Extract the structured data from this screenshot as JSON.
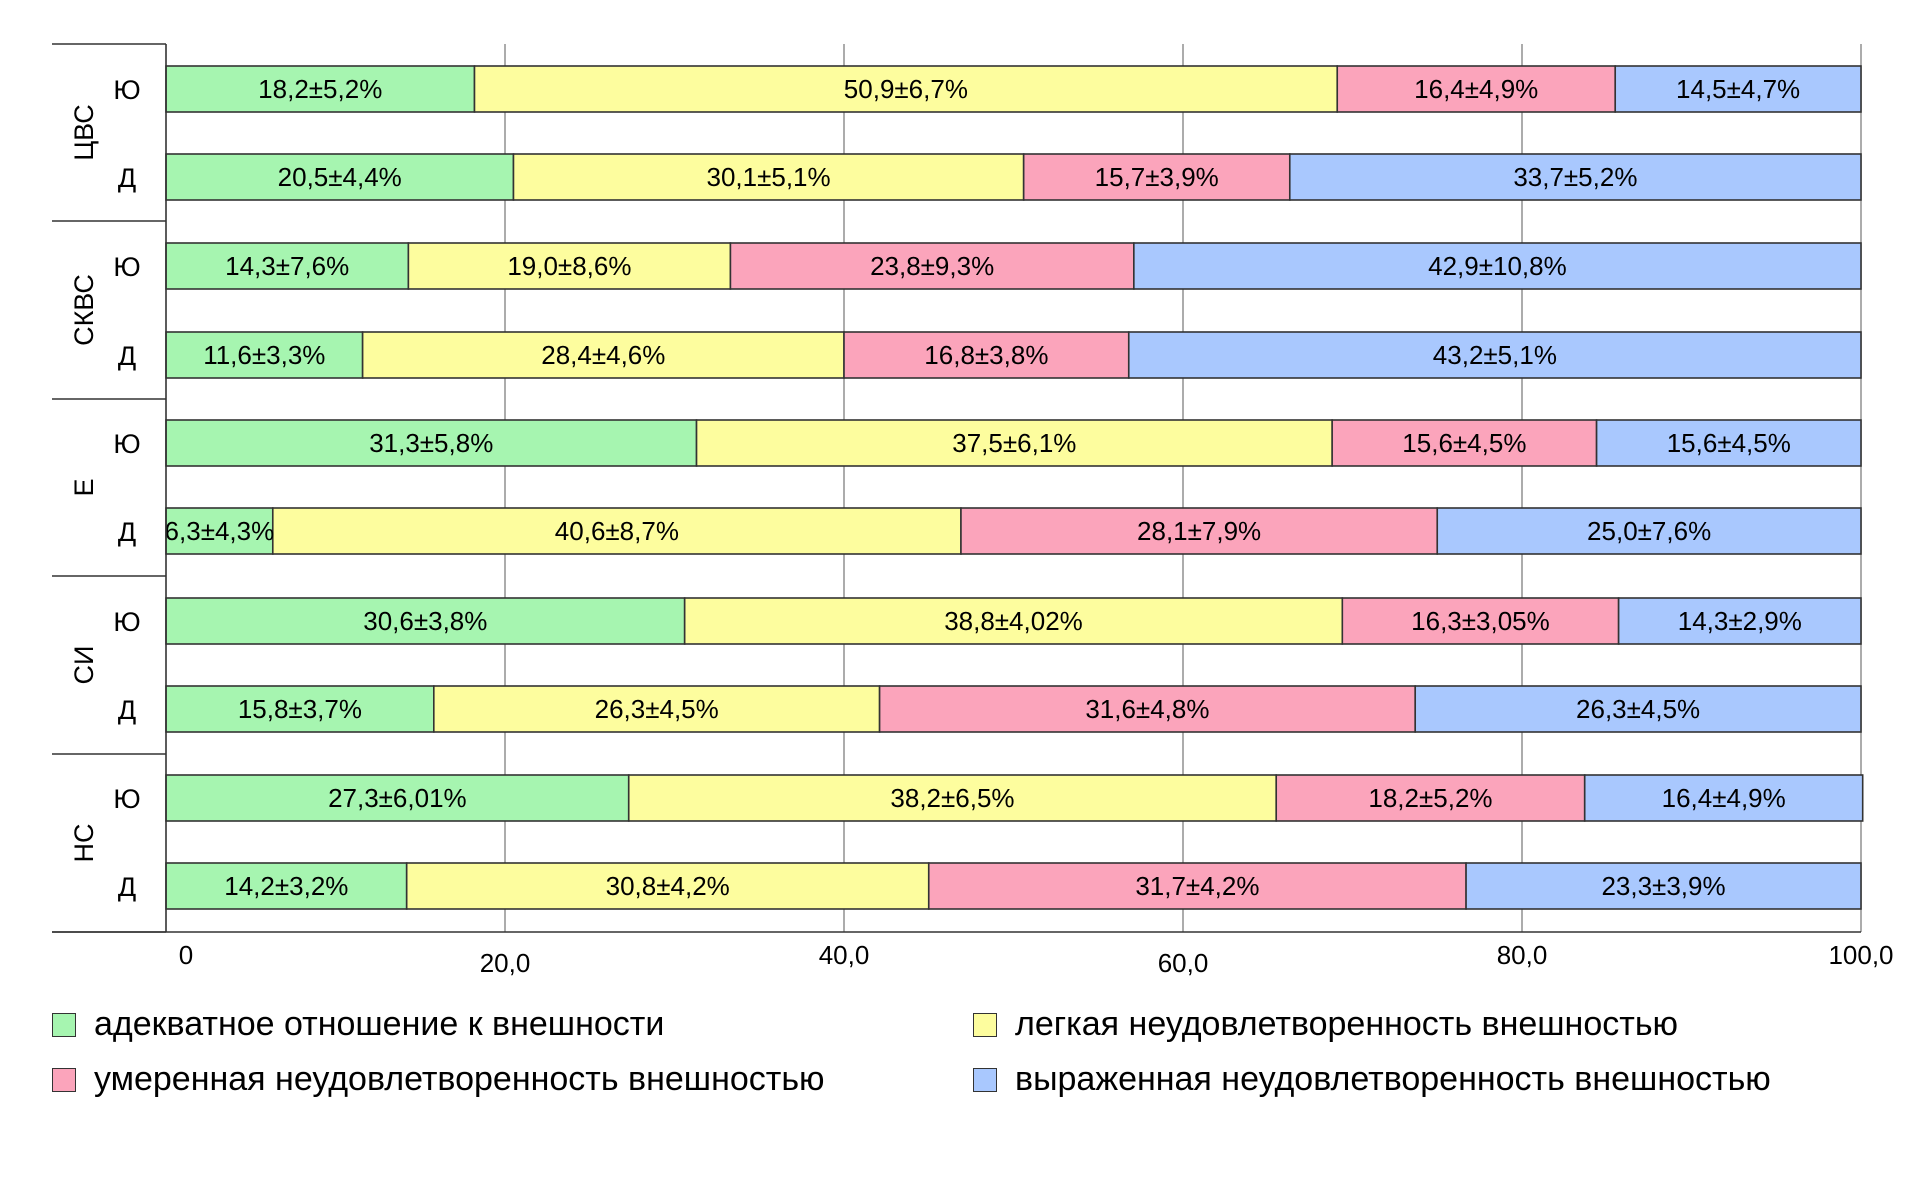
{
  "chart_data": {
    "type": "bar",
    "orientation": "horizontal",
    "stacked": true,
    "xlim": [
      0,
      100
    ],
    "grid": true,
    "x_ticks": [
      "0",
      "20,0",
      "40,0",
      "60,0",
      "80,0",
      "100,0"
    ],
    "x_tick_values": [
      0,
      20,
      40,
      60,
      80,
      100
    ],
    "legend_position": "bottom",
    "series": [
      {
        "name": "адекватное отношение к внешности",
        "color": "#a6f5b0"
      },
      {
        "name": "легкая неудовлетворенность внешностью",
        "color": "#fdfd9e"
      },
      {
        "name": "умеренная неудовлетворенность внешностью",
        "color": "#fba4bb"
      },
      {
        "name": "выраженная неудовлетворенность внешностью",
        "color": "#a9c8fe"
      }
    ],
    "groups": [
      {
        "name": "ЦВС",
        "rows": [
          {
            "label": "Ю",
            "values": [
              18.2,
              50.9,
              16.4,
              14.5
            ],
            "labels": [
              "18,2±5,2%",
              "50,9±6,7%",
              "16,4±4,9%",
              "14,5±4,7%"
            ]
          },
          {
            "label": "Д",
            "values": [
              20.5,
              30.1,
              15.7,
              33.7
            ],
            "labels": [
              "20,5±4,4%",
              "30,1±5,1%",
              "15,7±3,9%",
              "33,7±5,2%"
            ]
          }
        ]
      },
      {
        "name": "СКВС",
        "rows": [
          {
            "label": "Ю",
            "values": [
              14.3,
              19.0,
              23.8,
              42.9
            ],
            "labels": [
              "14,3±7,6%",
              "19,0±8,6%",
              "23,8±9,3%",
              "42,9±10,8%"
            ]
          },
          {
            "label": "Д",
            "values": [
              11.6,
              28.4,
              16.8,
              43.2
            ],
            "labels": [
              "11,6±3,3%",
              "28,4±4,6%",
              "16,8±3,8%",
              "43,2±5,1%"
            ]
          }
        ]
      },
      {
        "name": "Е",
        "rows": [
          {
            "label": "Ю",
            "values": [
              31.3,
              37.5,
              15.6,
              15.6
            ],
            "labels": [
              "31,3±5,8%",
              "37,5±6,1%",
              "15,6±4,5%",
              "15,6±4,5%"
            ]
          },
          {
            "label": "Д",
            "values": [
              6.3,
              40.6,
              28.1,
              25.0
            ],
            "labels": [
              "6,3±4,3%",
              "40,6±8,7%",
              "28,1±7,9%",
              "25,0±7,6%"
            ]
          }
        ]
      },
      {
        "name": "СИ",
        "rows": [
          {
            "label": "Ю",
            "values": [
              30.6,
              38.8,
              16.3,
              14.3
            ],
            "labels": [
              "30,6±3,8%",
              "38,8±4,02%",
              "16,3±3,05%",
              "14,3±2,9%"
            ]
          },
          {
            "label": "Д",
            "values": [
              15.8,
              26.3,
              31.6,
              26.3
            ],
            "labels": [
              "15,8±3,7%",
              "26,3±4,5%",
              "31,6±4,8%",
              "26,3±4,5%"
            ]
          }
        ]
      },
      {
        "name": "НС",
        "rows": [
          {
            "label": "Ю",
            "values": [
              27.3,
              38.2,
              18.2,
              16.4
            ],
            "labels": [
              "27,3±6,01%",
              "38,2±6,5%",
              "18,2±5,2%",
              "16,4±4,9%"
            ]
          },
          {
            "label": "Д",
            "values": [
              14.2,
              30.8,
              31.7,
              23.3
            ],
            "labels": [
              "14,2±3,2%",
              "30,8±4,2%",
              "31,7±4,2%",
              "23,3±3,9%"
            ]
          }
        ]
      }
    ]
  }
}
